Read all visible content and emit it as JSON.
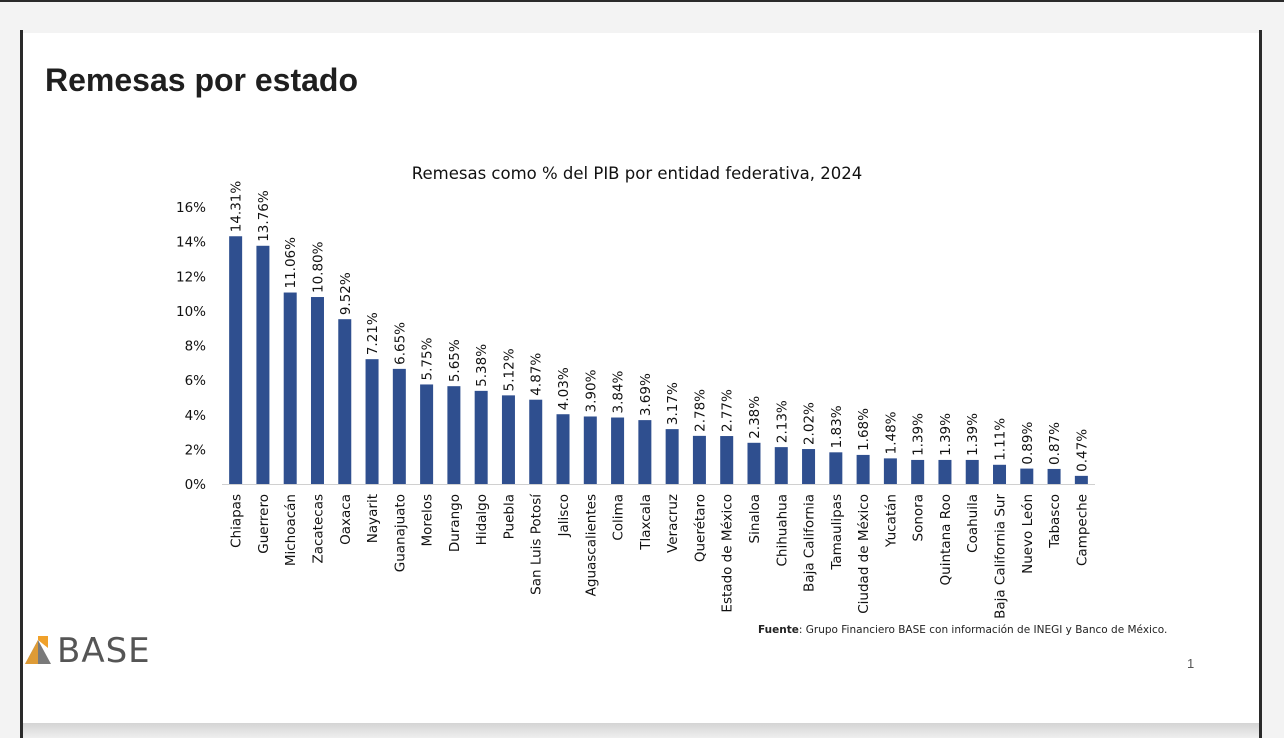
{
  "slide": {
    "title": "Remesas por estado",
    "page_number": "1"
  },
  "footnote": {
    "label": "Fuente",
    "text": ": Grupo Financiero BASE con información de INEGI y Banco de México."
  },
  "logo": {
    "text": "BASE",
    "colors": {
      "mark_orange": "#f0a12a",
      "mark_gray": "#7a7a7a",
      "text": "#555555"
    }
  },
  "chart_data": {
    "type": "bar",
    "title": "Remesas como % del PIB por entidad federativa, 2024",
    "xlabel": "",
    "ylabel": "",
    "ylim": [
      0,
      16
    ],
    "yticks": [
      "0%",
      "2%",
      "4%",
      "6%",
      "8%",
      "10%",
      "12%",
      "14%",
      "16%"
    ],
    "ytick_values": [
      0,
      2,
      4,
      6,
      8,
      10,
      12,
      14,
      16
    ],
    "grid": false,
    "bar_color": "#2f4f8f",
    "categories": [
      "Chiapas",
      "Guerrero",
      "Michoacán",
      "Zacatecas",
      "Oaxaca",
      "Nayarit",
      "Guanajuato",
      "Morelos",
      "Durango",
      "Hidalgo",
      "Puebla",
      "San Luis Potosí",
      "Jalisco",
      "Aguascalientes",
      "Colima",
      "Tlaxcala",
      "Veracruz",
      "Querétaro",
      "Estado de México",
      "Sinaloa",
      "Chihuahua",
      "Baja California",
      "Tamaulipas",
      "Ciudad de México",
      "Yucatán",
      "Sonora",
      "Quintana Roo",
      "Coahuila",
      "Baja California Sur",
      "Nuevo León",
      "Tabasco",
      "Campeche"
    ],
    "values": [
      14.31,
      13.76,
      11.06,
      10.8,
      9.52,
      7.21,
      6.65,
      5.75,
      5.65,
      5.38,
      5.12,
      4.87,
      4.03,
      3.9,
      3.84,
      3.69,
      3.17,
      2.78,
      2.77,
      2.38,
      2.13,
      2.02,
      1.83,
      1.68,
      1.48,
      1.39,
      1.39,
      1.39,
      1.11,
      0.89,
      0.87,
      0.47
    ],
    "data_labels": [
      "14.31%",
      "13.76%",
      "11.06%",
      "10.80%",
      "9.52%",
      "7.21%",
      "6.65%",
      "5.75%",
      "5.65%",
      "5.38%",
      "5.12%",
      "4.87%",
      "4.03%",
      "3.90%",
      "3.84%",
      "3.69%",
      "3.17%",
      "2.78%",
      "2.77%",
      "2.38%",
      "2.13%",
      "2.02%",
      "1.83%",
      "1.68%",
      "1.48%",
      "1.39%",
      "1.39%",
      "1.39%",
      "1.11%",
      "0.89%",
      "0.87%",
      "0.47%"
    ]
  }
}
